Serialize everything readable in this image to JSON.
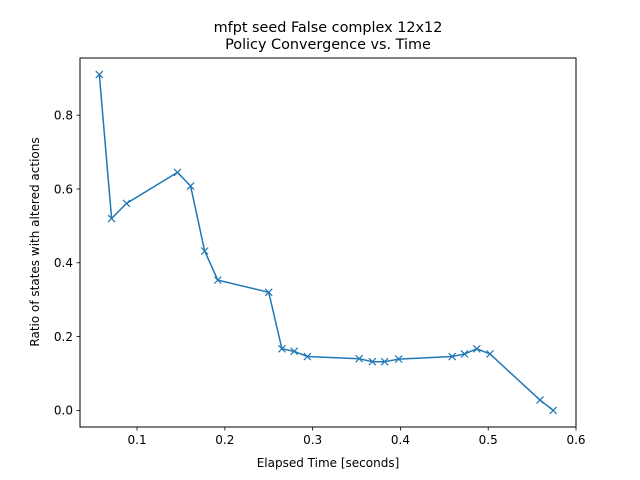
{
  "chart_data": {
    "type": "line",
    "title": "mfpt seed False complex 12x12",
    "subtitle": "Policy Convergence vs. Time",
    "xlabel": "Elapsed Time [seconds]",
    "ylabel": "Ratio of states with altered actions",
    "xlim": [
      0.035,
      0.6
    ],
    "ylim": [
      -0.045,
      0.955
    ],
    "xticks": [
      0.1,
      0.2,
      0.3,
      0.4,
      0.5,
      0.6
    ],
    "xtick_labels": [
      "0.1",
      "0.2",
      "0.3",
      "0.4",
      "0.5",
      "0.6"
    ],
    "yticks": [
      0.0,
      0.2,
      0.4,
      0.6,
      0.8
    ],
    "ytick_labels": [
      "0.0",
      "0.2",
      "0.4",
      "0.6",
      "0.8"
    ],
    "grid": false,
    "series": [
      {
        "color": "#1f77b4",
        "marker": "x",
        "points": [
          {
            "x": 0.057,
            "y": 0.91
          },
          {
            "x": 0.071,
            "y": 0.52
          },
          {
            "x": 0.088,
            "y": 0.561
          },
          {
            "x": 0.146,
            "y": 0.645
          },
          {
            "x": 0.161,
            "y": 0.608
          },
          {
            "x": 0.177,
            "y": 0.432
          },
          {
            "x": 0.192,
            "y": 0.353
          },
          {
            "x": 0.25,
            "y": 0.32
          },
          {
            "x": 0.265,
            "y": 0.167
          },
          {
            "x": 0.279,
            "y": 0.16
          },
          {
            "x": 0.294,
            "y": 0.146
          },
          {
            "x": 0.353,
            "y": 0.14
          },
          {
            "x": 0.368,
            "y": 0.132
          },
          {
            "x": 0.382,
            "y": 0.132
          },
          {
            "x": 0.398,
            "y": 0.139
          },
          {
            "x": 0.459,
            "y": 0.146
          },
          {
            "x": 0.473,
            "y": 0.153
          },
          {
            "x": 0.487,
            "y": 0.167
          },
          {
            "x": 0.502,
            "y": 0.153
          },
          {
            "x": 0.559,
            "y": 0.028
          },
          {
            "x": 0.574,
            "y": 0.0
          }
        ]
      }
    ]
  }
}
